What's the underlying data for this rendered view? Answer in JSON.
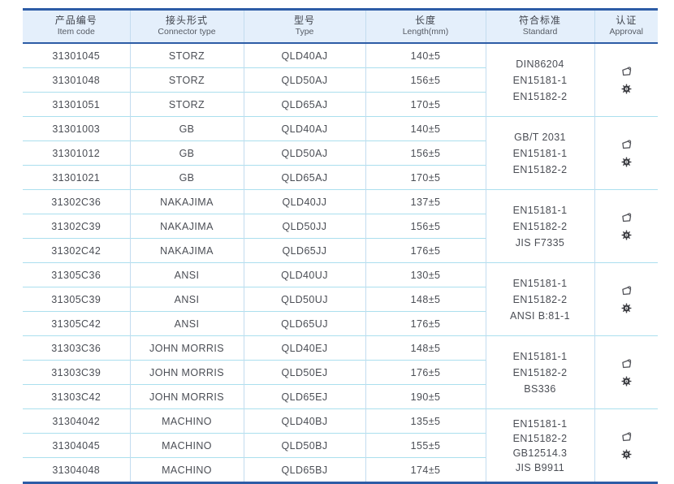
{
  "table": {
    "columns": [
      {
        "zh": "产品编号",
        "en": "Item code"
      },
      {
        "zh": "接头形式",
        "en": "Connector type"
      },
      {
        "zh": "型号",
        "en": "Type"
      },
      {
        "zh": "长度",
        "en": "Length(mm)"
      },
      {
        "zh": "符合标准",
        "en": "Standard"
      },
      {
        "zh": "认证",
        "en": "Approval"
      }
    ],
    "groups": [
      {
        "rows": [
          {
            "item_code": "31301045",
            "connector_type": "STORZ",
            "type": "QLD40AJ",
            "length": "140±5"
          },
          {
            "item_code": "31301048",
            "connector_type": "STORZ",
            "type": "QLD50AJ",
            "length": "156±5"
          },
          {
            "item_code": "31301051",
            "connector_type": "STORZ",
            "type": "QLD65AJ",
            "length": "170±5"
          }
        ],
        "standards": [
          "DIN86204",
          "EN15181-1",
          "EN15182-2"
        ],
        "approval_icons": [
          "certificate-icon",
          "wheel-mark-icon"
        ]
      },
      {
        "rows": [
          {
            "item_code": "31301003",
            "connector_type": "GB",
            "type": "QLD40AJ",
            "length": "140±5"
          },
          {
            "item_code": "31301012",
            "connector_type": "GB",
            "type": "QLD50AJ",
            "length": "156±5"
          },
          {
            "item_code": "31301021",
            "connector_type": "GB",
            "type": "QLD65AJ",
            "length": "170±5"
          }
        ],
        "standards": [
          "GB/T 2031",
          "EN15181-1",
          "EN15182-2"
        ],
        "approval_icons": [
          "certificate-icon",
          "wheel-mark-icon"
        ]
      },
      {
        "rows": [
          {
            "item_code": "31302C36",
            "connector_type": "NAKAJIMA",
            "type": "QLD40JJ",
            "length": "137±5"
          },
          {
            "item_code": "31302C39",
            "connector_type": "NAKAJIMA",
            "type": "QLD50JJ",
            "length": "156±5"
          },
          {
            "item_code": "31302C42",
            "connector_type": "NAKAJIMA",
            "type": "QLD65JJ",
            "length": "176±5"
          }
        ],
        "standards": [
          "EN15181-1",
          "EN15182-2",
          "JIS F7335"
        ],
        "approval_icons": [
          "certificate-icon",
          "wheel-mark-icon"
        ]
      },
      {
        "rows": [
          {
            "item_code": "31305C36",
            "connector_type": "ANSI",
            "type": "QLD40UJ",
            "length": "130±5"
          },
          {
            "item_code": "31305C39",
            "connector_type": "ANSI",
            "type": "QLD50UJ",
            "length": "148±5"
          },
          {
            "item_code": "31305C42",
            "connector_type": "ANSI",
            "type": "QLD65UJ",
            "length": "176±5"
          }
        ],
        "standards": [
          "EN15181-1",
          "EN15182-2",
          "ANSI B:81-1"
        ],
        "approval_icons": [
          "certificate-icon",
          "wheel-mark-icon"
        ]
      },
      {
        "rows": [
          {
            "item_code": "31303C36",
            "connector_type": "JOHN MORRIS",
            "type": "QLD40EJ",
            "length": "148±5"
          },
          {
            "item_code": "31303C39",
            "connector_type": "JOHN MORRIS",
            "type": "QLD50EJ",
            "length": "176±5"
          },
          {
            "item_code": "31303C42",
            "connector_type": "JOHN MORRIS",
            "type": "QLD65EJ",
            "length": "190±5"
          }
        ],
        "standards": [
          "EN15181-1",
          "EN15182-2",
          "BS336"
        ],
        "approval_icons": [
          "certificate-icon",
          "wheel-mark-icon"
        ]
      },
      {
        "rows": [
          {
            "item_code": "31304042",
            "connector_type": "MACHINO",
            "type": "QLD40BJ",
            "length": "135±5"
          },
          {
            "item_code": "31304045",
            "connector_type": "MACHINO",
            "type": "QLD50BJ",
            "length": "155±5"
          },
          {
            "item_code": "31304048",
            "connector_type": "MACHINO",
            "type": "QLD65BJ",
            "length": "174±5"
          }
        ],
        "standards": [
          "EN15181-1",
          "EN15182-2",
          "GB12514.3",
          "JIS B9911"
        ],
        "approval_icons": [
          "certificate-icon",
          "wheel-mark-icon"
        ]
      }
    ]
  },
  "colors": {
    "accent_border": "#2d5ca6",
    "header_background": "#e4effb",
    "row_line": "#abdfee",
    "column_line": "#c3dcef",
    "text": "#4b4e55"
  }
}
